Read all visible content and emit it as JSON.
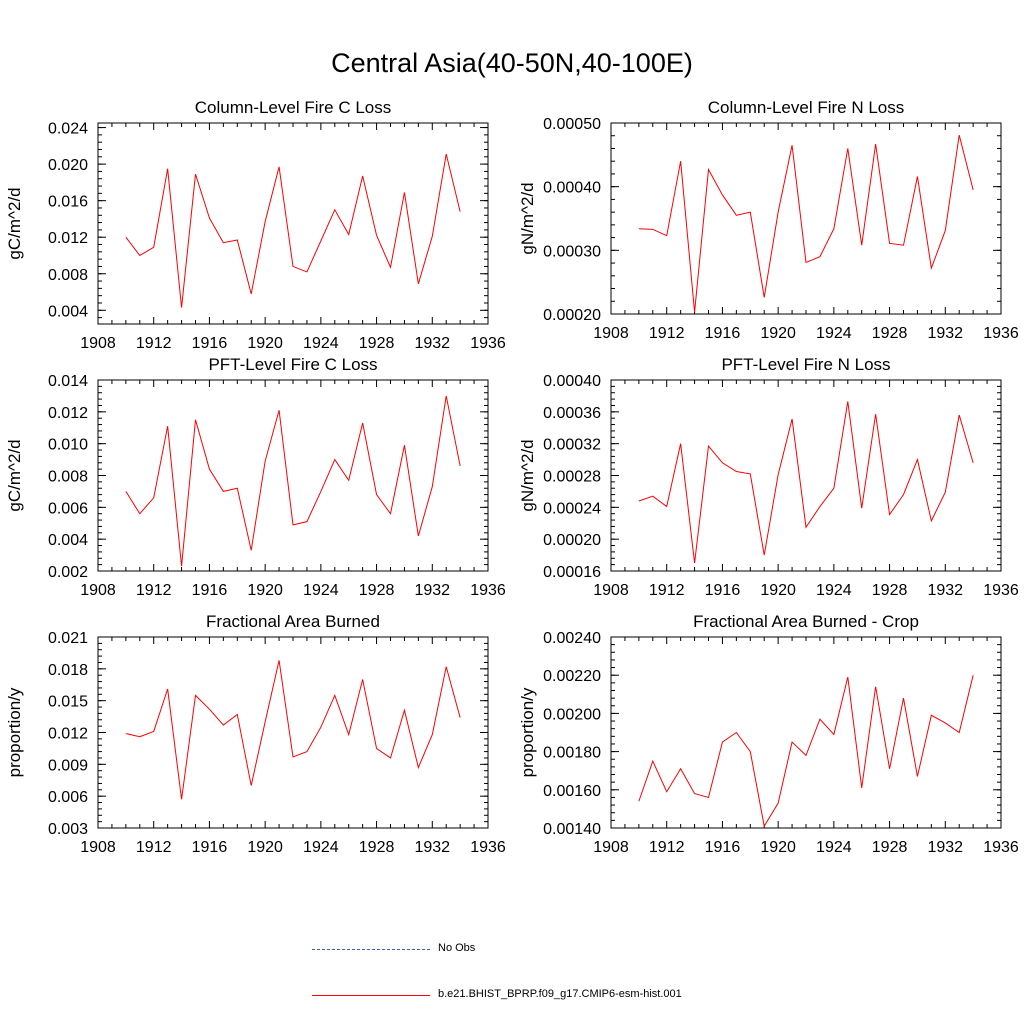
{
  "title": "Central Asia(40-50N,40-100E)",
  "legend": [
    {
      "label": "No Obs",
      "style": "dashed",
      "color": "#3f5fbf"
    },
    {
      "label": "b.e21.BHIST_BPRP.f09_g17.CMIP6-esm-hist.001",
      "style": "solid",
      "color": "#ff0000"
    }
  ],
  "chart_data": [
    {
      "type": "line",
      "title": "Column-Level Fire C Loss",
      "ylabel": "gC/m^2/d",
      "xlim": [
        1908,
        1936
      ],
      "ylim": [
        0.0025,
        0.0245
      ],
      "xticks": [
        "1908",
        "1912",
        "1916",
        "1920",
        "1924",
        "1928",
        "1932",
        "1936"
      ],
      "yticks": [
        "0.004",
        "0.008",
        "0.012",
        "0.016",
        "0.020",
        "0.024"
      ],
      "x": [
        1910,
        1911,
        1912,
        1913,
        1914,
        1915,
        1916,
        1917,
        1918,
        1919,
        1920,
        1921,
        1922,
        1923,
        1924,
        1925,
        1926,
        1927,
        1928,
        1929,
        1930,
        1931,
        1932,
        1933,
        1934
      ],
      "series": [
        {
          "color": "#ff0000",
          "values": [
            0.012,
            0.01,
            0.0109,
            0.0195,
            0.0043,
            0.0189,
            0.0141,
            0.0114,
            0.0117,
            0.0058,
            0.0137,
            0.0197,
            0.0088,
            0.0082,
            0.0116,
            0.015,
            0.0123,
            0.0187,
            0.0122,
            0.0087,
            0.0169,
            0.0069,
            0.0121,
            0.0211,
            0.0148
          ]
        }
      ]
    },
    {
      "type": "line",
      "title": "Column-Level Fire N Loss",
      "ylabel": "gN/m^2/d",
      "xlim": [
        1908,
        1936
      ],
      "ylim": [
        0.0002,
        0.0005
      ],
      "xticks": [
        "1908",
        "1912",
        "1916",
        "1920",
        "1924",
        "1928",
        "1932",
        "1936"
      ],
      "yticks": [
        "0.00020",
        "0.00030",
        "0.00040",
        "0.00050"
      ],
      "x": [
        1910,
        1911,
        1912,
        1913,
        1914,
        1915,
        1916,
        1917,
        1918,
        1919,
        1920,
        1921,
        1922,
        1923,
        1924,
        1925,
        1926,
        1927,
        1928,
        1929,
        1930,
        1931,
        1932,
        1933,
        1934
      ],
      "series": [
        {
          "color": "#ff0000",
          "values": [
            0.000334,
            0.000333,
            0.000323,
            0.00044,
            0.000203,
            0.000427,
            0.000387,
            0.000355,
            0.00036,
            0.000226,
            0.00036,
            0.000465,
            0.000281,
            0.00029,
            0.000334,
            0.00046,
            0.000308,
            0.000467,
            0.000311,
            0.000308,
            0.000416,
            0.000272,
            0.000331,
            0.000481,
            0.000395
          ]
        }
      ]
    },
    {
      "type": "line",
      "title": "PFT-Level Fire C Loss",
      "ylabel": "gC/m^2/d",
      "xlim": [
        1908,
        1936
      ],
      "ylim": [
        0.002,
        0.014
      ],
      "xticks": [
        "1908",
        "1912",
        "1916",
        "1920",
        "1924",
        "1928",
        "1932",
        "1936"
      ],
      "yticks": [
        "0.002",
        "0.004",
        "0.006",
        "0.008",
        "0.010",
        "0.012",
        "0.014"
      ],
      "x": [
        1910,
        1911,
        1912,
        1913,
        1914,
        1915,
        1916,
        1917,
        1918,
        1919,
        1920,
        1921,
        1922,
        1923,
        1924,
        1925,
        1926,
        1927,
        1928,
        1929,
        1930,
        1931,
        1932,
        1933,
        1934
      ],
      "series": [
        {
          "color": "#ff0000",
          "values": [
            0.007,
            0.0056,
            0.0066,
            0.0111,
            0.0023,
            0.0115,
            0.0084,
            0.007,
            0.0072,
            0.0033,
            0.0089,
            0.0121,
            0.0049,
            0.0051,
            0.007,
            0.009,
            0.0077,
            0.0113,
            0.0068,
            0.0056,
            0.0099,
            0.0042,
            0.0073,
            0.013,
            0.0086
          ]
        }
      ]
    },
    {
      "type": "line",
      "title": "PFT-Level Fire N Loss",
      "ylabel": "gN/m^2/d",
      "xlim": [
        1908,
        1936
      ],
      "ylim": [
        0.00016,
        0.0004
      ],
      "xticks": [
        "1908",
        "1912",
        "1916",
        "1920",
        "1924",
        "1928",
        "1932",
        "1936"
      ],
      "yticks": [
        "0.00016",
        "0.00020",
        "0.00024",
        "0.00028",
        "0.00032",
        "0.00036",
        "0.00040"
      ],
      "x": [
        1910,
        1911,
        1912,
        1913,
        1914,
        1915,
        1916,
        1917,
        1918,
        1919,
        1920,
        1921,
        1922,
        1923,
        1924,
        1925,
        1926,
        1927,
        1928,
        1929,
        1930,
        1931,
        1932,
        1933,
        1934
      ],
      "series": [
        {
          "color": "#ff0000",
          "values": [
            0.000248,
            0.000254,
            0.000241,
            0.00032,
            0.00017,
            0.000317,
            0.000296,
            0.000285,
            0.000282,
            0.00018,
            0.000281,
            0.000351,
            0.000215,
            0.000241,
            0.000264,
            0.000373,
            0.000239,
            0.000357,
            0.000231,
            0.000256,
            0.0003,
            0.000223,
            0.000259,
            0.000356,
            0.000296
          ]
        }
      ]
    },
    {
      "type": "line",
      "title": "Fractional Area Burned",
      "ylabel": "proportion/y",
      "xlim": [
        1908,
        1936
      ],
      "ylim": [
        0.003,
        0.021
      ],
      "xticks": [
        "1908",
        "1912",
        "1916",
        "1920",
        "1924",
        "1928",
        "1932",
        "1936"
      ],
      "yticks": [
        "0.003",
        "0.006",
        "0.009",
        "0.012",
        "0.015",
        "0.018",
        "0.021"
      ],
      "x": [
        1910,
        1911,
        1912,
        1913,
        1914,
        1915,
        1916,
        1917,
        1918,
        1919,
        1920,
        1921,
        1922,
        1923,
        1924,
        1925,
        1926,
        1927,
        1928,
        1929,
        1930,
        1931,
        1932,
        1933,
        1934
      ],
      "series": [
        {
          "color": "#ff0000",
          "values": [
            0.0119,
            0.0116,
            0.0121,
            0.0161,
            0.0057,
            0.0155,
            0.0142,
            0.0127,
            0.0137,
            0.007,
            0.013,
            0.0188,
            0.0097,
            0.0102,
            0.0125,
            0.0155,
            0.0118,
            0.017,
            0.0105,
            0.0096,
            0.0141,
            0.0087,
            0.0118,
            0.0182,
            0.0134
          ]
        }
      ]
    },
    {
      "type": "line",
      "title": "Fractional Area Burned - Crop",
      "ylabel": "proportion/y",
      "xlim": [
        1908,
        1936
      ],
      "ylim": [
        0.0014,
        0.0024
      ],
      "xticks": [
        "1908",
        "1912",
        "1916",
        "1920",
        "1924",
        "1928",
        "1932",
        "1936"
      ],
      "yticks": [
        "0.00140",
        "0.00160",
        "0.00180",
        "0.00200",
        "0.00220",
        "0.00240"
      ],
      "x": [
        1910,
        1911,
        1912,
        1913,
        1914,
        1915,
        1916,
        1917,
        1918,
        1919,
        1920,
        1921,
        1922,
        1923,
        1924,
        1925,
        1926,
        1927,
        1928,
        1929,
        1930,
        1931,
        1932,
        1933,
        1934
      ],
      "series": [
        {
          "color": "#ff0000",
          "values": [
            0.00154,
            0.00175,
            0.00159,
            0.00171,
            0.00158,
            0.00156,
            0.00185,
            0.0019,
            0.0018,
            0.00141,
            0.00153,
            0.00185,
            0.00178,
            0.00197,
            0.00189,
            0.00219,
            0.00161,
            0.00214,
            0.00171,
            0.00208,
            0.00167,
            0.00199,
            0.00195,
            0.0019,
            0.0022
          ]
        }
      ]
    }
  ]
}
